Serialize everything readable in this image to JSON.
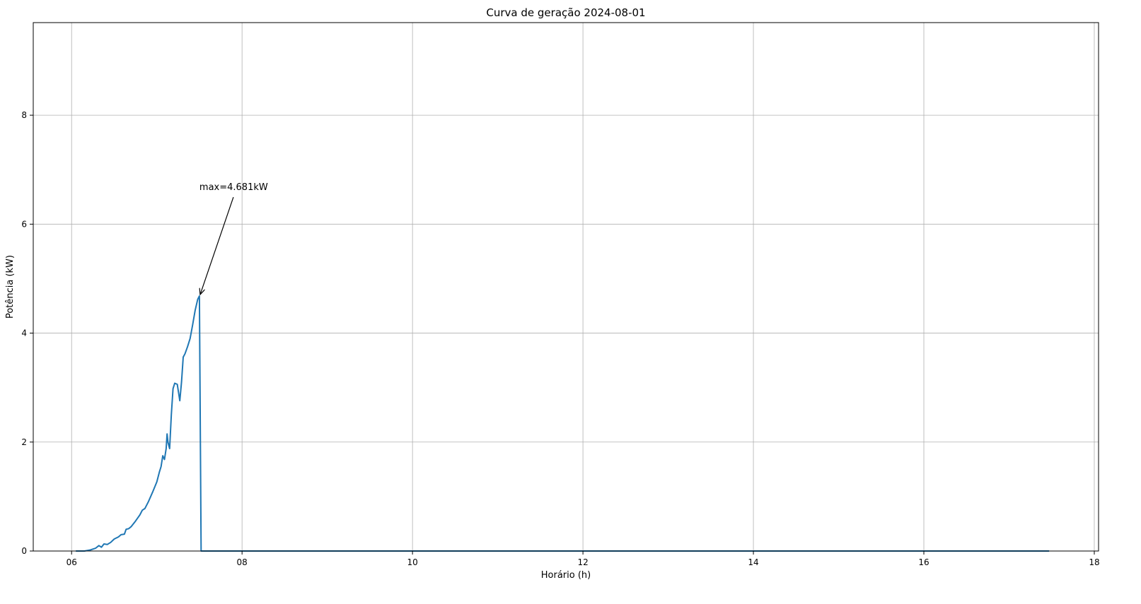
{
  "chart_data": {
    "type": "line",
    "title": "Curva de geração 2024-08-01",
    "xlabel": "Horário (h)",
    "ylabel": "Potência (kW)",
    "xlim": [
      5.55,
      18.05
    ],
    "ylim": [
      0,
      9.7
    ],
    "x_ticks": [
      6,
      8,
      10,
      12,
      14,
      16,
      18
    ],
    "x_tick_labels": [
      "06",
      "08",
      "10",
      "12",
      "14",
      "16",
      "18"
    ],
    "y_ticks": [
      0,
      2,
      4,
      6,
      8
    ],
    "y_tick_labels": [
      "0",
      "2",
      "4",
      "6",
      "8"
    ],
    "grid": true,
    "series": [
      {
        "color": "#1f77b4",
        "points": [
          [
            6.05,
            0.0
          ],
          [
            6.15,
            0.0
          ],
          [
            6.22,
            0.02
          ],
          [
            6.28,
            0.05
          ],
          [
            6.32,
            0.1
          ],
          [
            6.35,
            0.07
          ],
          [
            6.38,
            0.13
          ],
          [
            6.42,
            0.12
          ],
          [
            6.46,
            0.16
          ],
          [
            6.5,
            0.22
          ],
          [
            6.55,
            0.26
          ],
          [
            6.58,
            0.3
          ],
          [
            6.62,
            0.31
          ],
          [
            6.64,
            0.4
          ],
          [
            6.67,
            0.41
          ],
          [
            6.7,
            0.45
          ],
          [
            6.75,
            0.55
          ],
          [
            6.8,
            0.66
          ],
          [
            6.83,
            0.75
          ],
          [
            6.86,
            0.78
          ],
          [
            6.9,
            0.9
          ],
          [
            6.95,
            1.08
          ],
          [
            7.0,
            1.27
          ],
          [
            7.03,
            1.45
          ],
          [
            7.05,
            1.55
          ],
          [
            7.07,
            1.75
          ],
          [
            7.09,
            1.68
          ],
          [
            7.11,
            1.88
          ],
          [
            7.12,
            2.15
          ],
          [
            7.13,
            2.0
          ],
          [
            7.15,
            1.88
          ],
          [
            7.17,
            2.5
          ],
          [
            7.19,
            2.98
          ],
          [
            7.21,
            3.08
          ],
          [
            7.24,
            3.06
          ],
          [
            7.27,
            2.76
          ],
          [
            7.29,
            3.1
          ],
          [
            7.31,
            3.56
          ],
          [
            7.33,
            3.62
          ],
          [
            7.36,
            3.75
          ],
          [
            7.39,
            3.9
          ],
          [
            7.42,
            4.15
          ],
          [
            7.45,
            4.42
          ],
          [
            7.48,
            4.62
          ],
          [
            7.5,
            4.681
          ],
          [
            7.52,
            0.0
          ],
          [
            9.0,
            0.0
          ],
          [
            12.0,
            0.0
          ],
          [
            15.0,
            0.0
          ],
          [
            17.47,
            0.0
          ]
        ]
      }
    ],
    "annotations": [
      {
        "text": "max=4.681kW",
        "x": 7.5,
        "y": 4.681,
        "text_x": 7.5,
        "text_y": 6.6
      }
    ]
  }
}
